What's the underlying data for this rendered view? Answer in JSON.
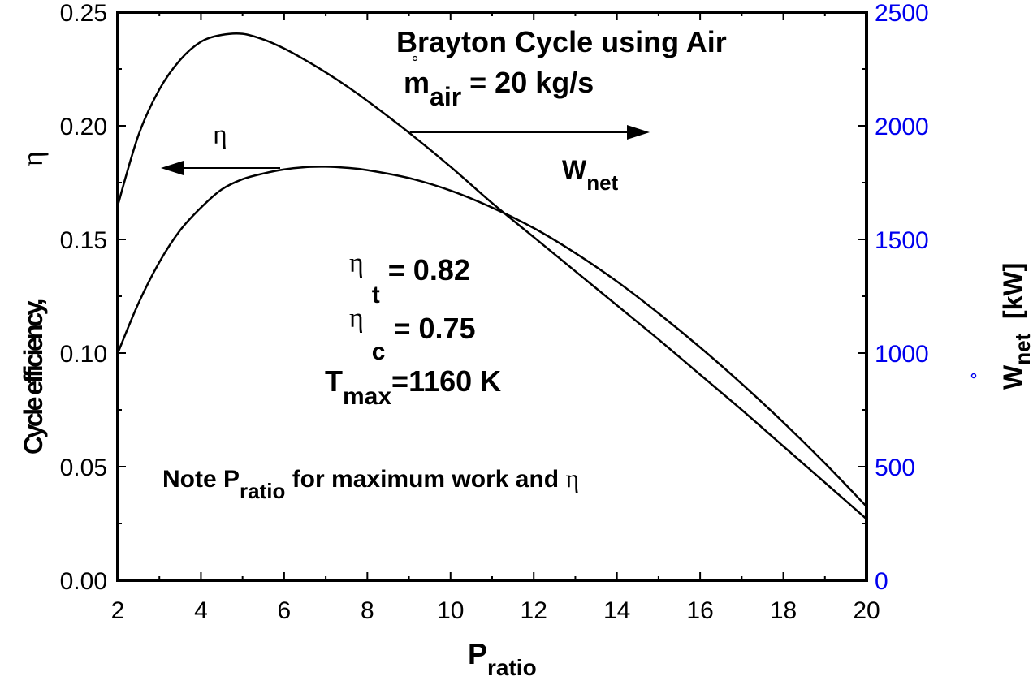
{
  "chart_data": {
    "type": "line",
    "title_line1": "Brayton Cycle using Air",
    "title_line2": {
      "m": "m",
      "sub": "air",
      "rest": " = 20 kg/s"
    },
    "xlabel": {
      "main": "P",
      "sub": "ratio"
    },
    "ylabel_left": {
      "text": "Cycle efficiency,",
      "symbol": "η"
    },
    "ylabel_right": {
      "main": "W",
      "sub": "net",
      "unit": "  [kW]"
    },
    "xlim": [
      2,
      20
    ],
    "ylim_left": [
      0,
      0.25
    ],
    "ylim_right": [
      0,
      2500
    ],
    "x_ticks": [
      2,
      4,
      6,
      8,
      10,
      12,
      14,
      16,
      18,
      20
    ],
    "x_tick_labels": [
      "2",
      "4",
      "6",
      "8",
      "10",
      "12",
      "14",
      "16",
      "18",
      "20"
    ],
    "y_left_ticks": [
      0,
      0.05,
      0.1,
      0.15,
      0.2,
      0.25
    ],
    "y_left_tick_labels": [
      "0.00",
      "0.05",
      "0.10",
      "0.15",
      "0.20",
      "0.25"
    ],
    "y_right_ticks": [
      0,
      500,
      1000,
      1500,
      2000,
      2500
    ],
    "y_right_tick_labels": [
      "0",
      "500",
      "1000",
      "1500",
      "2000",
      "2500"
    ],
    "right_axis_color": "#0000ee",
    "series": [
      {
        "name": "η",
        "axis": "left",
        "x": [
          2,
          2.5,
          3,
          3.5,
          4,
          4.5,
          5,
          5.5,
          6,
          6.5,
          7,
          7.5,
          8,
          9,
          10,
          11,
          12,
          13,
          14,
          15,
          16,
          17,
          18,
          19,
          20
        ],
        "values": [
          0.1,
          0.122,
          0.14,
          0.154,
          0.164,
          0.172,
          0.1765,
          0.179,
          0.1808,
          0.1818,
          0.182,
          0.1815,
          0.1805,
          0.177,
          0.1715,
          0.164,
          0.155,
          0.144,
          0.1315,
          0.1175,
          0.1025,
          0.0865,
          0.0695,
          0.0515,
          0.0325
        ]
      },
      {
        "name": "Wnet",
        "axis": "right",
        "x": [
          2,
          2.5,
          3,
          3.5,
          4,
          4.5,
          5,
          5.5,
          6,
          6.5,
          7,
          7.5,
          8,
          9,
          10,
          11,
          12,
          13,
          14,
          15,
          16,
          17,
          18,
          19,
          20
        ],
        "values": [
          1650,
          1960,
          2160,
          2290,
          2370,
          2400,
          2405,
          2380,
          2340,
          2290,
          2235,
          2175,
          2110,
          1970,
          1820,
          1660,
          1510,
          1360,
          1210,
          1060,
          905,
          750,
          590,
          430,
          270
        ]
      }
    ],
    "annotations": {
      "eta_label": "η",
      "wnet_label": {
        "main": "W",
        "sub": "net"
      },
      "eta_t": {
        "symbol": "η",
        "sub": "t",
        "rest": " = 0.82"
      },
      "eta_c": {
        "symbol": "η",
        "sub": "c",
        "rest": " = 0.75"
      },
      "tmax": {
        "main": "T",
        "sub": "max",
        "rest": "=1160 K"
      },
      "note": {
        "before": "Note P",
        "sub": "ratio",
        "after": " for maximum work and ",
        "symbol": "η"
      }
    },
    "grid": false
  }
}
